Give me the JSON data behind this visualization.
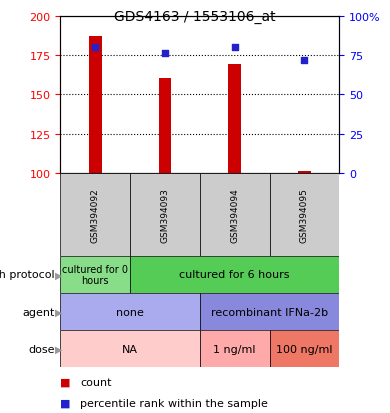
{
  "title": "GDS4163 / 1553106_at",
  "samples": [
    "GSM394092",
    "GSM394093",
    "GSM394094",
    "GSM394095"
  ],
  "counts": [
    187,
    160,
    169,
    101
  ],
  "percentile_ranks": [
    80,
    76,
    80,
    72
  ],
  "ylim_left": [
    100,
    200
  ],
  "ylim_right": [
    0,
    100
  ],
  "left_ticks": [
    100,
    125,
    150,
    175,
    200
  ],
  "right_ticks": [
    0,
    25,
    50,
    75,
    100
  ],
  "bar_color": "#cc0000",
  "dot_color": "#2222cc",
  "bar_bottom": 100,
  "bar_width": 0.18,
  "growth_protocol_spans": [
    {
      "label": "cultured for 0\nhours",
      "start": 0,
      "end": 1,
      "color": "#88dd88"
    },
    {
      "label": "cultured for 6 hours",
      "start": 1,
      "end": 4,
      "color": "#55cc55"
    }
  ],
  "agent_spans": [
    {
      "label": "none",
      "start": 0,
      "end": 2,
      "color": "#aaaaee"
    },
    {
      "label": "recombinant IFNa-2b",
      "start": 2,
      "end": 4,
      "color": "#8888dd"
    }
  ],
  "dose_spans": [
    {
      "label": "NA",
      "start": 0,
      "end": 2,
      "color": "#ffcccc"
    },
    {
      "label": "1 ng/ml",
      "start": 2,
      "end": 3,
      "color": "#ffaaaa"
    },
    {
      "label": "100 ng/ml",
      "start": 3,
      "end": 4,
      "color": "#ee7766"
    }
  ],
  "sample_area_color": "#cccccc",
  "legend_count_color": "#cc0000",
  "legend_dot_color": "#2222cc",
  "row_labels": [
    "growth protocol",
    "agent",
    "dose"
  ]
}
